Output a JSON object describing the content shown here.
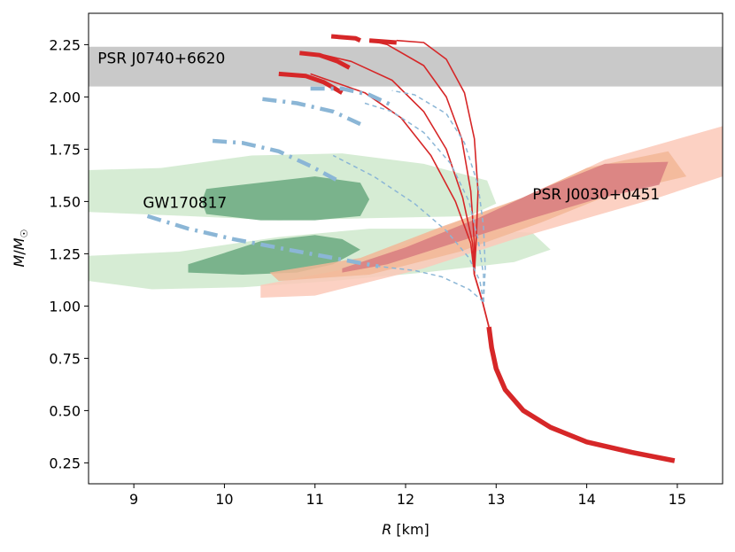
{
  "chart_data": {
    "type": "line",
    "title": "",
    "xlabel": "R [km]",
    "ylabel": "M/M☉",
    "xlim": [
      8.5,
      15.5
    ],
    "ylim": [
      0.15,
      2.4
    ],
    "xticks": [
      9,
      10,
      11,
      12,
      13,
      14,
      15
    ],
    "yticks": [
      0.25,
      0.5,
      0.75,
      1.0,
      1.25,
      1.5,
      1.75,
      2.0,
      2.25
    ],
    "colors": {
      "band": "#c9c9c9",
      "gw_light": "#cfe9cc",
      "gw_dark": "#6aa97f",
      "nicer_light": "#fbc9b8",
      "nicer_mid": "#f2b796",
      "nicer_dark": "#d77d80",
      "blue": "#8bb6d6",
      "red": "#d62728"
    },
    "annotations": [
      {
        "text": "PSR J0740+6620",
        "x": 8.6,
        "y": 2.16
      },
      {
        "text": "GW170817",
        "x": 9.1,
        "y": 1.47
      },
      {
        "text": "PSR J0030+0451",
        "x": 13.4,
        "y": 1.51
      }
    ],
    "bands": [
      {
        "name": "PSR J0740+6620",
        "ymin": 2.05,
        "ymax": 2.24
      }
    ],
    "regions": [
      {
        "name": "gw170817-outer-upper",
        "color": "gw_light",
        "points": [
          [
            8.5,
            1.65
          ],
          [
            9.3,
            1.66
          ],
          [
            10.3,
            1.72
          ],
          [
            11.3,
            1.73
          ],
          [
            12.2,
            1.68
          ],
          [
            12.9,
            1.6
          ],
          [
            13.0,
            1.49
          ],
          [
            12.7,
            1.43
          ],
          [
            11.6,
            1.42
          ],
          [
            10.6,
            1.41
          ],
          [
            9.6,
            1.43
          ],
          [
            8.5,
            1.45
          ]
        ]
      },
      {
        "name": "gw170817-outer-lower",
        "color": "gw_light",
        "points": [
          [
            8.5,
            1.24
          ],
          [
            9.5,
            1.26
          ],
          [
            10.6,
            1.33
          ],
          [
            11.6,
            1.37
          ],
          [
            12.6,
            1.37
          ],
          [
            13.4,
            1.35
          ],
          [
            13.6,
            1.27
          ],
          [
            13.2,
            1.21
          ],
          [
            12.2,
            1.16
          ],
          [
            11.2,
            1.12
          ],
          [
            10.2,
            1.09
          ],
          [
            9.2,
            1.08
          ],
          [
            8.5,
            1.12
          ]
        ]
      },
      {
        "name": "gw170817-inner-upper",
        "color": "gw_dark",
        "points": [
          [
            9.8,
            1.56
          ],
          [
            10.6,
            1.6
          ],
          [
            11.0,
            1.62
          ],
          [
            11.5,
            1.59
          ],
          [
            11.6,
            1.51
          ],
          [
            11.5,
            1.43
          ],
          [
            11.0,
            1.41
          ],
          [
            10.4,
            1.41
          ],
          [
            9.8,
            1.44
          ],
          [
            9.75,
            1.5
          ]
        ]
      },
      {
        "name": "gw170817-inner-lower",
        "color": "gw_dark",
        "points": [
          [
            9.6,
            1.2
          ],
          [
            9.9,
            1.24
          ],
          [
            10.4,
            1.31
          ],
          [
            11.0,
            1.34
          ],
          [
            11.3,
            1.32
          ],
          [
            11.5,
            1.27
          ],
          [
            11.2,
            1.2
          ],
          [
            10.8,
            1.16
          ],
          [
            10.2,
            1.15
          ],
          [
            9.6,
            1.16
          ]
        ]
      },
      {
        "name": "nicer-outer",
        "color": "nicer_light",
        "points": [
          [
            10.4,
            1.1
          ],
          [
            11.5,
            1.19
          ],
          [
            12.3,
            1.36
          ],
          [
            13.2,
            1.5
          ],
          [
            14.2,
            1.7
          ],
          [
            15.5,
            1.86
          ],
          [
            15.5,
            1.62
          ],
          [
            14.8,
            1.52
          ],
          [
            14.0,
            1.42
          ],
          [
            13.2,
            1.32
          ],
          [
            12.2,
            1.18
          ],
          [
            11.0,
            1.05
          ],
          [
            10.4,
            1.04
          ]
        ]
      },
      {
        "name": "nicer-mid",
        "color": "nicer_mid",
        "points": [
          [
            10.5,
            1.16
          ],
          [
            11.5,
            1.23
          ],
          [
            12.4,
            1.38
          ],
          [
            13.3,
            1.52
          ],
          [
            14.0,
            1.66
          ],
          [
            14.9,
            1.74
          ],
          [
            15.1,
            1.62
          ],
          [
            14.3,
            1.54
          ],
          [
            13.5,
            1.4
          ],
          [
            12.6,
            1.26
          ],
          [
            11.6,
            1.15
          ],
          [
            10.6,
            1.12
          ]
        ]
      },
      {
        "name": "nicer-inner",
        "color": "nicer_dark",
        "points": [
          [
            11.3,
            1.18
          ],
          [
            12.0,
            1.28
          ],
          [
            12.8,
            1.42
          ],
          [
            13.5,
            1.56
          ],
          [
            14.2,
            1.68
          ],
          [
            14.9,
            1.69
          ],
          [
            14.8,
            1.58
          ],
          [
            14.1,
            1.51
          ],
          [
            13.4,
            1.42
          ],
          [
            12.6,
            1.31
          ],
          [
            11.8,
            1.2
          ],
          [
            11.3,
            1.16
          ]
        ]
      }
    ],
    "series": [
      {
        "name": "red-stem-thick",
        "color": "red",
        "width": 5.5,
        "dash": "",
        "points": [
          [
            12.92,
            0.9
          ],
          [
            12.95,
            0.8
          ],
          [
            13.0,
            0.7
          ],
          [
            13.1,
            0.6
          ],
          [
            13.3,
            0.5
          ],
          [
            13.6,
            0.42
          ],
          [
            14.0,
            0.35
          ],
          [
            14.5,
            0.3
          ],
          [
            14.97,
            0.26
          ]
        ]
      },
      {
        "name": "red-stem-thin",
        "color": "red",
        "width": 1.8,
        "dash": "",
        "points": [
          [
            12.76,
            1.15
          ],
          [
            12.85,
            1.02
          ],
          [
            12.92,
            0.9
          ]
        ]
      },
      {
        "name": "red-curve-1",
        "color": "red",
        "width": 1.6,
        "dash": "",
        "points": [
          [
            12.76,
            1.15
          ],
          [
            12.72,
            1.3
          ],
          [
            12.55,
            1.5
          ],
          [
            12.28,
            1.72
          ],
          [
            11.95,
            1.9
          ],
          [
            11.55,
            2.02
          ],
          [
            10.95,
            2.11
          ]
        ]
      },
      {
        "name": "red-curve-2",
        "color": "red",
        "width": 1.6,
        "dash": "",
        "points": [
          [
            12.76,
            1.15
          ],
          [
            12.74,
            1.3
          ],
          [
            12.63,
            1.52
          ],
          [
            12.45,
            1.75
          ],
          [
            12.2,
            1.93
          ],
          [
            11.85,
            2.08
          ],
          [
            11.4,
            2.17
          ],
          [
            11.1,
            2.2
          ]
        ]
      },
      {
        "name": "red-curve-3",
        "color": "red",
        "width": 1.6,
        "dash": "",
        "points": [
          [
            12.76,
            1.15
          ],
          [
            12.76,
            1.3
          ],
          [
            12.72,
            1.55
          ],
          [
            12.62,
            1.8
          ],
          [
            12.45,
            2.0
          ],
          [
            12.2,
            2.15
          ],
          [
            11.8,
            2.25
          ],
          [
            11.6,
            2.27
          ]
        ]
      },
      {
        "name": "red-curve-4",
        "color": "red",
        "width": 1.6,
        "dash": "",
        "points": [
          [
            12.76,
            1.15
          ],
          [
            12.78,
            1.32
          ],
          [
            12.8,
            1.55
          ],
          [
            12.76,
            1.8
          ],
          [
            12.65,
            2.02
          ],
          [
            12.45,
            2.18
          ],
          [
            12.2,
            2.26
          ],
          [
            11.9,
            2.27
          ]
        ]
      },
      {
        "name": "red-top-1",
        "color": "red",
        "width": 5,
        "dash": "",
        "points": [
          [
            10.6,
            2.11
          ],
          [
            10.9,
            2.1
          ],
          [
            11.1,
            2.07
          ],
          [
            11.3,
            2.02
          ]
        ]
      },
      {
        "name": "red-top-2",
        "color": "red",
        "width": 5,
        "dash": "",
        "points": [
          [
            10.83,
            2.21
          ],
          [
            11.05,
            2.2
          ],
          [
            11.25,
            2.17
          ],
          [
            11.38,
            2.14
          ]
        ]
      },
      {
        "name": "red-top-3",
        "color": "red",
        "width": 5,
        "dash": "",
        "points": [
          [
            11.18,
            2.29
          ],
          [
            11.45,
            2.28
          ],
          [
            11.5,
            2.27
          ]
        ]
      },
      {
        "name": "red-top-4",
        "color": "red",
        "width": 5,
        "dash": "",
        "points": [
          [
            11.6,
            2.27
          ],
          [
            11.9,
            2.26
          ]
        ]
      },
      {
        "name": "blue-curve-1",
        "color": "blue",
        "width": 1.5,
        "dash": "5,4",
        "points": [
          [
            12.86,
            1.02
          ],
          [
            12.7,
            1.08
          ],
          [
            12.4,
            1.14
          ],
          [
            12.1,
            1.17
          ],
          [
            11.7,
            1.19
          ]
        ]
      },
      {
        "name": "blue-curve-2",
        "color": "blue",
        "width": 1.5,
        "dash": "5,4",
        "points": [
          [
            12.86,
            1.02
          ],
          [
            12.82,
            1.12
          ],
          [
            12.7,
            1.23
          ],
          [
            12.45,
            1.36
          ],
          [
            12.1,
            1.49
          ],
          [
            11.65,
            1.62
          ],
          [
            11.2,
            1.72
          ]
        ]
      },
      {
        "name": "blue-curve-3",
        "color": "blue",
        "width": 1.5,
        "dash": "5,4",
        "points": [
          [
            12.86,
            1.02
          ],
          [
            12.86,
            1.15
          ],
          [
            12.8,
            1.32
          ],
          [
            12.7,
            1.5
          ],
          [
            12.5,
            1.68
          ],
          [
            12.2,
            1.83
          ],
          [
            11.85,
            1.93
          ],
          [
            11.55,
            1.97
          ]
        ]
      },
      {
        "name": "blue-curve-4",
        "color": "blue",
        "width": 1.5,
        "dash": "5,4",
        "points": [
          [
            12.86,
            1.02
          ],
          [
            12.88,
            1.18
          ],
          [
            12.86,
            1.38
          ],
          [
            12.8,
            1.58
          ],
          [
            12.65,
            1.78
          ],
          [
            12.45,
            1.92
          ],
          [
            12.1,
            2.01
          ],
          [
            11.85,
            2.03
          ]
        ]
      },
      {
        "name": "blue-thick-1",
        "color": "blue",
        "width": 4.5,
        "dash": "16,7,3,7",
        "points": [
          [
            9.15,
            1.43
          ],
          [
            9.6,
            1.37
          ],
          [
            10.1,
            1.32
          ],
          [
            10.7,
            1.27
          ],
          [
            11.2,
            1.23
          ],
          [
            11.7,
            1.19
          ]
        ]
      },
      {
        "name": "blue-thick-2",
        "color": "blue",
        "width": 4.5,
        "dash": "16,7,3,7",
        "points": [
          [
            9.87,
            1.79
          ],
          [
            10.2,
            1.78
          ],
          [
            10.6,
            1.74
          ],
          [
            10.95,
            1.67
          ],
          [
            11.25,
            1.6
          ]
        ]
      },
      {
        "name": "blue-thick-3",
        "color": "blue",
        "width": 4.5,
        "dash": "16,7,3,7",
        "points": [
          [
            10.42,
            1.99
          ],
          [
            10.8,
            1.97
          ],
          [
            11.2,
            1.93
          ],
          [
            11.55,
            1.86
          ]
        ]
      },
      {
        "name": "blue-thick-4",
        "color": "blue",
        "width": 4.5,
        "dash": "16,7,3,7",
        "points": [
          [
            10.95,
            2.04
          ],
          [
            11.3,
            2.04
          ],
          [
            11.6,
            2.01
          ],
          [
            11.85,
            1.96
          ]
        ]
      }
    ]
  }
}
